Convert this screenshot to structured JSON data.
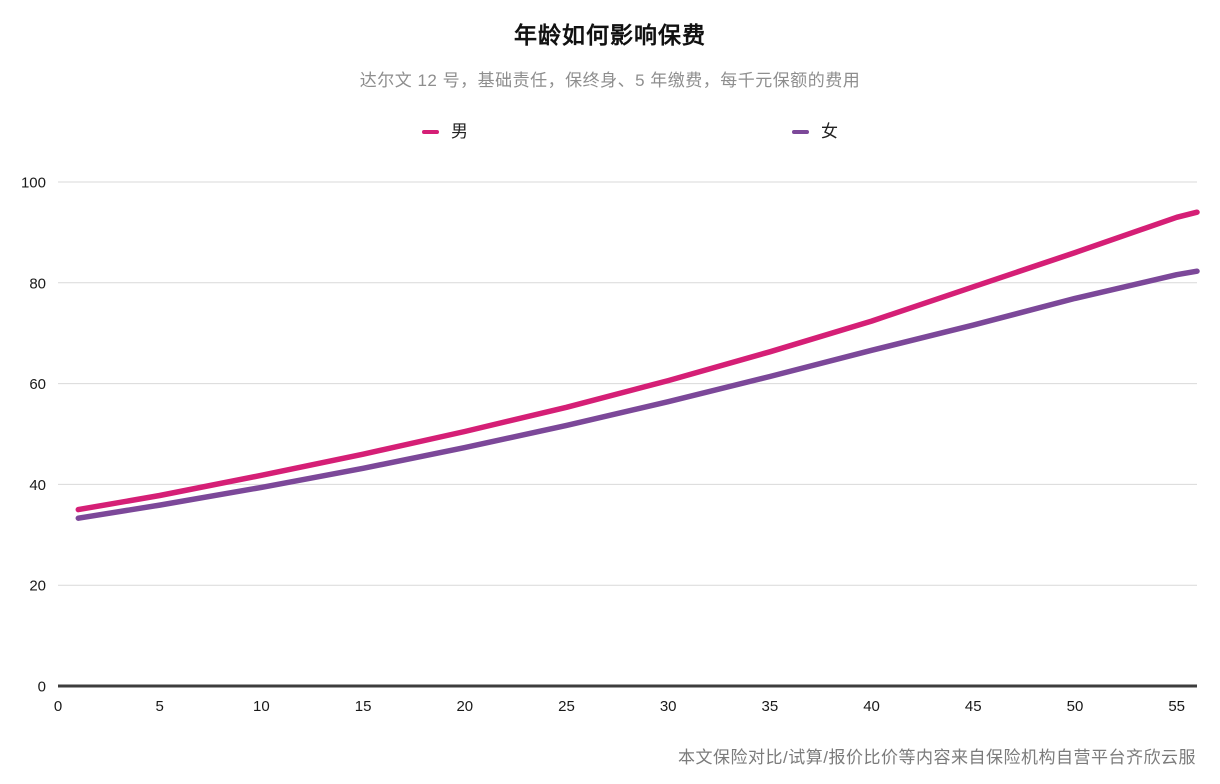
{
  "page": {
    "title": "年龄如何影响保费",
    "subtitle": "达尔文 12 号，基础责任，保终身、5 年缴费，每千元保额的费用",
    "footer": "本文保险对比/试算/报价比价等内容来自保险机构自营平台齐欣云服"
  },
  "legend": {
    "items": [
      {
        "label": "男",
        "color": "#D51F76"
      },
      {
        "label": "女",
        "color": "#7C4899"
      }
    ]
  },
  "chart_data": {
    "type": "line",
    "title": "年龄如何影响保费",
    "subtitle": "达尔文 12 号，基础责任，保终身、5 年缴费，每千元保额的费用",
    "xlabel": "",
    "ylabel": "",
    "xlim": [
      0,
      56
    ],
    "ylim": [
      0,
      100
    ],
    "x_ticks": [
      0,
      5,
      10,
      15,
      20,
      25,
      30,
      35,
      40,
      45,
      50,
      55
    ],
    "y_ticks": [
      0,
      20,
      40,
      60,
      80,
      100
    ],
    "grid": "horizontal",
    "legend_position": "top",
    "x": [
      1,
      5,
      10,
      15,
      20,
      25,
      30,
      35,
      40,
      45,
      50,
      55,
      56
    ],
    "series": [
      {
        "name": "男",
        "color": "#D51F76",
        "values": [
          35.0,
          37.8,
          41.8,
          46.0,
          50.5,
          55.3,
          60.6,
          66.3,
          72.4,
          79.2,
          86.0,
          93.0,
          94.0
        ]
      },
      {
        "name": "女",
        "color": "#7C4899",
        "values": [
          33.3,
          35.9,
          39.4,
          43.2,
          47.3,
          51.7,
          56.4,
          61.4,
          66.6,
          71.6,
          76.9,
          81.6,
          82.3
        ]
      }
    ],
    "axis_color": "#3d3d3d",
    "gridline_color": "#d9d9d9",
    "tick_label_color": "#1a1a1a"
  }
}
